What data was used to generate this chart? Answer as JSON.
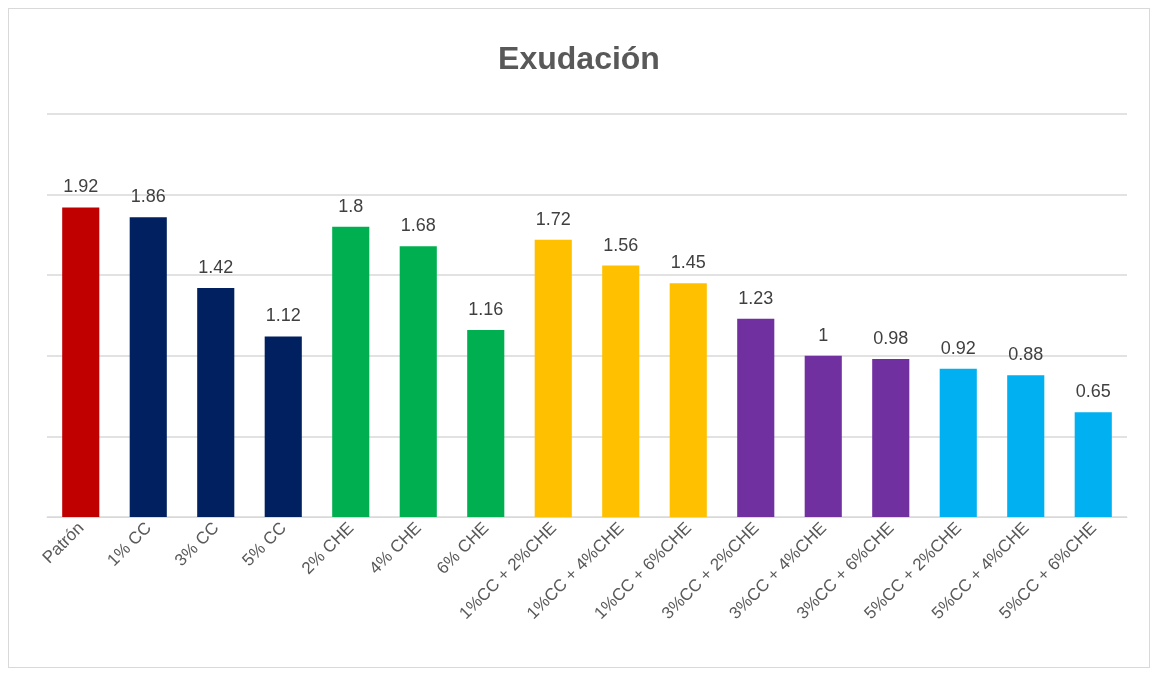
{
  "chart_data": {
    "type": "bar",
    "title": "Exudación",
    "categories": [
      "Patrón",
      "1% CC",
      "3% CC",
      "5% CC",
      "2% CHE",
      "4% CHE",
      "6% CHE",
      "1%CC + 2%CHE",
      "1%CC + 4%CHE",
      "1%CC + 6%CHE",
      "3%CC + 2%CHE",
      "3%CC + 4%CHE",
      "3%CC + 6%CHE",
      "5%CC + 2%CHE",
      "5%CC + 4%CHE",
      "5%CC + 6%CHE"
    ],
    "values": [
      1.92,
      1.86,
      1.42,
      1.12,
      1.8,
      1.68,
      1.16,
      1.72,
      1.56,
      1.45,
      1.23,
      1,
      0.98,
      0.92,
      0.88,
      0.65
    ],
    "colors": [
      "#c00000",
      "#002060",
      "#002060",
      "#002060",
      "#00b050",
      "#00b050",
      "#00b050",
      "#ffc000",
      "#ffc000",
      "#ffc000",
      "#7030a0",
      "#7030a0",
      "#7030a0",
      "#00b0f0",
      "#00b0f0",
      "#00b0f0"
    ],
    "ylim": [
      0,
      2.5
    ],
    "yticks": [
      {
        "value": 0,
        "label": null
      },
      {
        "value": 0.5,
        "label": null
      },
      {
        "value": 1,
        "label": null
      },
      {
        "value": 1.5,
        "label": null
      },
      {
        "value": 2,
        "label": null
      },
      {
        "value": 2.5,
        "label": null
      }
    ],
    "tick_labels": "x",
    "grid": "y",
    "data_labels": true
  }
}
